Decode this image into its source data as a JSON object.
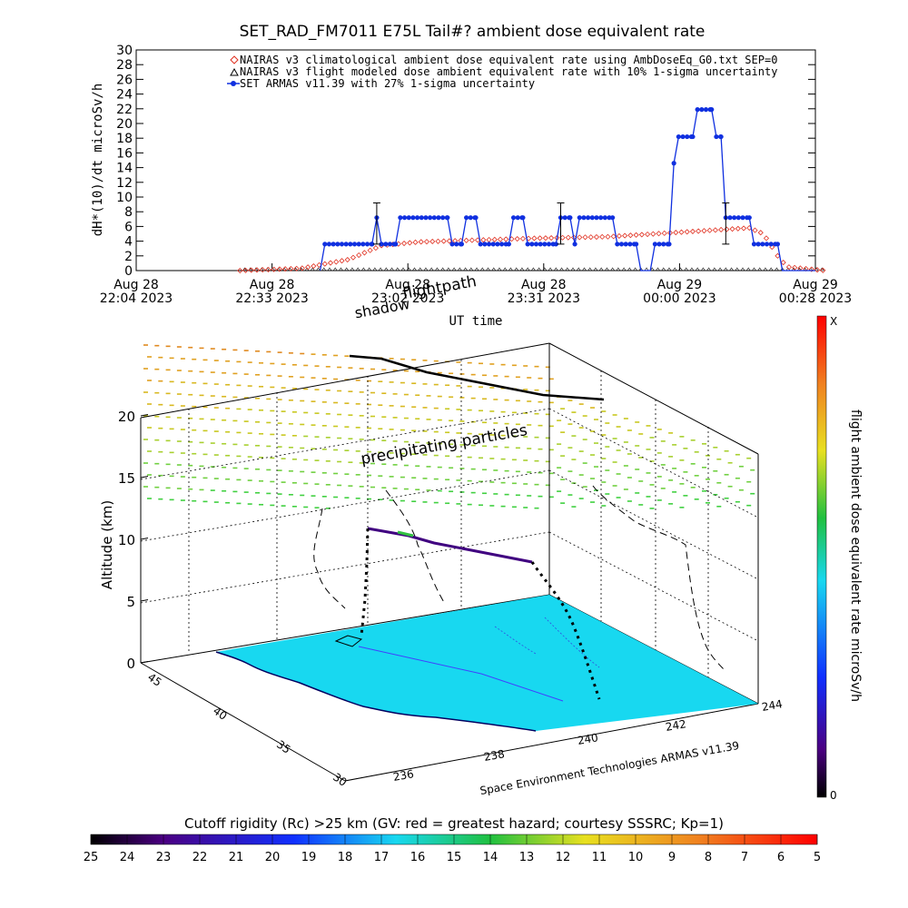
{
  "top_chart": {
    "title": "SET_RAD_FM7011  E75L Tail#? ambient dose equivalent rate",
    "ylabel": "dH*(10)/dt microSv/h",
    "xlabel": "UT time",
    "legend": [
      "NAIRAS v3 climatological ambient dose equivalent rate using AmbDoseEq_G0.txt SEP=0",
      "NAIRAS v3 flight modeled dose ambient equivalent rate with 10% 1-sigma uncertainty",
      "SET ARMAS v11.39 with 27% 1-sigma uncertainty"
    ],
    "x_ticks": [
      {
        "line1": "Aug 28",
        "line2": "22:04 2023"
      },
      {
        "line1": "Aug 28",
        "line2": "22:33 2023"
      },
      {
        "line1": "Aug 28",
        "line2": "23:02 2023"
      },
      {
        "line1": "Aug 28",
        "line2": "23:31 2023"
      },
      {
        "line1": "Aug 29",
        "line2": "00:00 2023"
      },
      {
        "line1": "Aug 29",
        "line2": "00:28 2023"
      }
    ]
  },
  "scene": {
    "labels": {
      "flightpath": "flightpath",
      "shadow": "shadow",
      "precipitating": "precipitating particles",
      "altitude_axis": "Altitude (km)",
      "credit": "Space Environment Technologies ARMAS v11.39"
    },
    "altitude_ticks": [
      "0",
      "5",
      "10",
      "15",
      "20"
    ],
    "lat_ticks": [
      "30",
      "35",
      "40",
      "45"
    ],
    "lon_ticks": [
      "236",
      "238",
      "240",
      "242",
      "244"
    ]
  },
  "colorbar_right": {
    "label": "flight ambient dose equivalent rate microSv/h",
    "top_label": "X",
    "bottom_label": "0"
  },
  "colorbar_bottom": {
    "title": "Cutoff rigidity (Rc) >25 km (GV: red = greatest hazard; courtesy SSSRC; Kp=1)",
    "ticks": [
      "25",
      "24",
      "23",
      "22",
      "21",
      "20",
      "19",
      "18",
      "17",
      "16",
      "15",
      "14",
      "13",
      "12",
      "11",
      "10",
      "9",
      "8",
      "7",
      "6",
      "5"
    ]
  },
  "colors": {
    "armas": "#1030e0",
    "climatological": "#e03020",
    "ground": "#18d8f0"
  },
  "chart_data": [
    {
      "type": "line",
      "x_unit": "minutes since Aug 28 22:04 2023",
      "xlim": [
        0,
        144
      ],
      "ylim": [
        0,
        30
      ],
      "y_ticks": [
        0,
        2,
        4,
        6,
        8,
        10,
        12,
        14,
        16,
        18,
        20,
        22,
        24,
        26,
        28,
        30
      ],
      "series": [
        {
          "name": "SET ARMAS v11.39 with 27% 1-sigma uncertainty",
          "points": [
            [
              39,
              0
            ],
            [
              40,
              3.6
            ],
            [
              50,
              3.6
            ],
            [
              51,
              7.2
            ],
            [
              52,
              3.6
            ],
            [
              55,
              3.6
            ],
            [
              56,
              7.2
            ],
            [
              66,
              7.2
            ],
            [
              67,
              3.6
            ],
            [
              69,
              3.6
            ],
            [
              70,
              7.2
            ],
            [
              72,
              7.2
            ],
            [
              73,
              3.6
            ],
            [
              79,
              3.6
            ],
            [
              80,
              7.2
            ],
            [
              82,
              7.2
            ],
            [
              83,
              3.6
            ],
            [
              89,
              3.6
            ],
            [
              90,
              7.2
            ],
            [
              92,
              7.2
            ],
            [
              93,
              3.6
            ],
            [
              94,
              7.2
            ],
            [
              101,
              7.2
            ],
            [
              102,
              3.6
            ],
            [
              106,
              3.6
            ],
            [
              107,
              0
            ],
            [
              109,
              0
            ],
            [
              110,
              3.6
            ],
            [
              113,
              3.6
            ],
            [
              114,
              14.6
            ],
            [
              115,
              18.2
            ],
            [
              118,
              18.2
            ],
            [
              119,
              21.9
            ],
            [
              122,
              21.9
            ],
            [
              123,
              18.2
            ],
            [
              124,
              18.2
            ],
            [
              125,
              7.2
            ],
            [
              130,
              7.2
            ],
            [
              131,
              3.6
            ],
            [
              136,
              3.6
            ],
            [
              137,
              0
            ],
            [
              144,
              0
            ]
          ]
        },
        {
          "name": "NAIRAS v3 climatological ambient dose equivalent rate using AmbDoseEq_G0.txt SEP=0",
          "points": [
            [
              22,
              0
            ],
            [
              35,
              0.3
            ],
            [
              45,
              1.5
            ],
            [
              52,
              3.4
            ],
            [
              60,
              3.9
            ],
            [
              70,
              4.1
            ],
            [
              85,
              4.4
            ],
            [
              100,
              4.6
            ],
            [
              115,
              5.2
            ],
            [
              125,
              5.6
            ],
            [
              130,
              5.8
            ],
            [
              133,
              5
            ],
            [
              136,
              2
            ],
            [
              138,
              0.5
            ],
            [
              146,
              0
            ]
          ]
        },
        {
          "name": "NAIRAS v3 flight modeled dose ambient equivalent rate with 10% 1-sigma uncertainty",
          "error_bars": [
            [
              51,
              9.2,
              7.2,
              3.6
            ],
            [
              90,
              9.2,
              7.2,
              3.6
            ],
            [
              125,
              9.2,
              7.2,
              3.6
            ]
          ]
        }
      ]
    },
    {
      "type": "scatter",
      "scene": "3d flight track over ground map",
      "axes": {
        "altitude_km": [
          0,
          20
        ],
        "latitude": [
          30,
          45
        ],
        "longitude": [
          236,
          244
        ]
      }
    }
  ]
}
